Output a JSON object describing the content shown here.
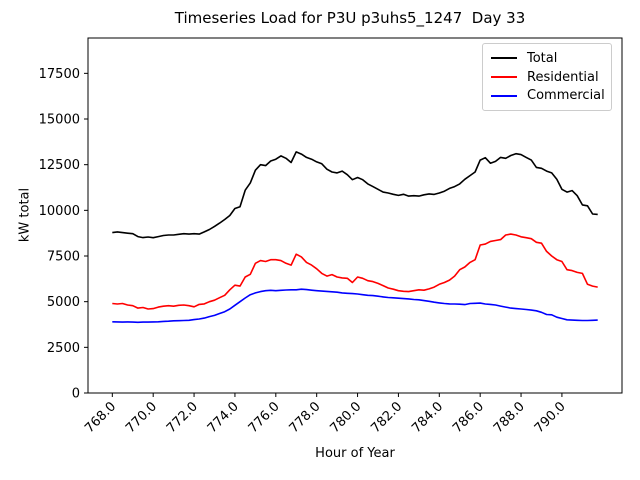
{
  "title": "Timeseries Load for P3U p3uhs5_1247  Day 33",
  "axes": {
    "xlabel": "Hour of Year",
    "ylabel": "kW total"
  },
  "legend": {
    "items": [
      {
        "label": "Total",
        "color": "#000000"
      },
      {
        "label": "Residential",
        "color": "#ff0000"
      },
      {
        "label": "Commercial",
        "color": "#0000ff"
      }
    ]
  },
  "chart_data": {
    "type": "line",
    "title": "Timeseries Load for P3U p3uhs5_1247  Day 33",
    "xlabel": "Hour of Year",
    "ylabel": "kW total",
    "xlim": [
      766.81,
      792.94
    ],
    "ylim": [
      0,
      19435
    ],
    "grid": false,
    "legend_position": "upper right",
    "xticks": [
      768,
      770,
      772,
      774,
      776,
      778,
      780,
      782,
      784,
      786,
      788,
      790
    ],
    "xtick_labels": [
      "768.0",
      "770.0",
      "772.0",
      "774.0",
      "776.0",
      "778.0",
      "780.0",
      "782.0",
      "784.0",
      "786.0",
      "788.0",
      "790.0"
    ],
    "yticks": [
      0,
      2500,
      5000,
      7500,
      10000,
      12500,
      15000,
      17500
    ],
    "ytick_labels": [
      "0",
      "2500",
      "5000",
      "7500",
      "10000",
      "12500",
      "15000",
      "17500"
    ],
    "x_start": 768.0,
    "x_step": 0.25,
    "series": [
      {
        "name": "Total",
        "color": "#000000",
        "values": [
          8780,
          8820,
          8780,
          8750,
          8720,
          8560,
          8510,
          8540,
          8500,
          8560,
          8620,
          8650,
          8650,
          8690,
          8720,
          8700,
          8720,
          8700,
          8820,
          8950,
          9120,
          9300,
          9500,
          9720,
          10100,
          10200,
          11100,
          11500,
          12200,
          12500,
          12450,
          12700,
          12800,
          12980,
          12850,
          12620,
          13200,
          13080,
          12900,
          12800,
          12650,
          12550,
          12250,
          12100,
          12050,
          12150,
          11950,
          11680,
          11800,
          11680,
          11450,
          11300,
          11150,
          11000,
          10950,
          10880,
          10820,
          10880,
          10780,
          10800,
          10780,
          10850,
          10900,
          10870,
          10950,
          11050,
          11200,
          11300,
          11450,
          11700,
          11900,
          12100,
          12750,
          12880,
          12580,
          12680,
          12900,
          12850,
          13000,
          13100,
          13050,
          12900,
          12750,
          12350,
          12300,
          12150,
          12050,
          11700,
          11150,
          11000,
          11080,
          10800,
          10300,
          10250,
          9800,
          9780
        ]
      },
      {
        "name": "Residential",
        "color": "#ff0000",
        "values": [
          4900,
          4870,
          4900,
          4820,
          4780,
          4650,
          4680,
          4600,
          4620,
          4700,
          4750,
          4780,
          4750,
          4800,
          4820,
          4780,
          4720,
          4850,
          4880,
          5000,
          5080,
          5220,
          5350,
          5650,
          5900,
          5850,
          6350,
          6500,
          7100,
          7250,
          7200,
          7300,
          7300,
          7250,
          7100,
          7000,
          7600,
          7450,
          7150,
          7000,
          6800,
          6550,
          6400,
          6480,
          6350,
          6300,
          6280,
          6050,
          6350,
          6280,
          6150,
          6100,
          6000,
          5880,
          5750,
          5680,
          5600,
          5570,
          5550,
          5600,
          5650,
          5630,
          5700,
          5800,
          5950,
          6050,
          6180,
          6400,
          6750,
          6900,
          7150,
          7300,
          8100,
          8150,
          8300,
          8350,
          8400,
          8650,
          8700,
          8650,
          8550,
          8500,
          8450,
          8250,
          8200,
          7750,
          7500,
          7300,
          7200,
          6750,
          6700,
          6600,
          6550,
          5950,
          5850,
          5800
        ]
      },
      {
        "name": "Commercial",
        "color": "#0000ff",
        "values": [
          3900,
          3890,
          3880,
          3890,
          3880,
          3870,
          3880,
          3880,
          3890,
          3900,
          3920,
          3930,
          3950,
          3960,
          3970,
          3980,
          4020,
          4050,
          4100,
          4180,
          4250,
          4350,
          4450,
          4600,
          4800,
          5000,
          5200,
          5380,
          5480,
          5550,
          5600,
          5620,
          5600,
          5620,
          5640,
          5650,
          5650,
          5680,
          5660,
          5630,
          5600,
          5580,
          5560,
          5540,
          5520,
          5480,
          5460,
          5440,
          5420,
          5380,
          5350,
          5330,
          5300,
          5260,
          5230,
          5210,
          5190,
          5170,
          5150,
          5120,
          5100,
          5060,
          5020,
          4970,
          4930,
          4900,
          4880,
          4870,
          4860,
          4840,
          4900,
          4910,
          4920,
          4870,
          4850,
          4820,
          4760,
          4700,
          4650,
          4620,
          4600,
          4570,
          4540,
          4500,
          4420,
          4300,
          4280,
          4150,
          4080,
          4010,
          3990,
          3980,
          3970,
          3970,
          3980,
          3990
        ]
      }
    ]
  }
}
